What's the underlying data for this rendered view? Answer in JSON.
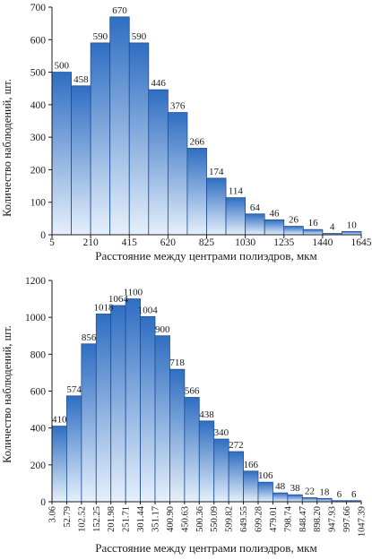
{
  "chart_data": [
    {
      "type": "bar",
      "ylabel": "Количество наблюдений, шт.",
      "xlabel": "Расстояние между центрами полиэдров, мкм",
      "ylim": [
        0,
        700
      ],
      "yticks": [
        0,
        100,
        200,
        300,
        400,
        500,
        600,
        700
      ],
      "xticks": [
        "5",
        "210",
        "415",
        "620",
        "825",
        "1030",
        "1235",
        "1440",
        "1645"
      ],
      "values": [
        500,
        458,
        590,
        670,
        590,
        446,
        376,
        266,
        174,
        114,
        64,
        46,
        26,
        16,
        4,
        10
      ],
      "value_labels": [
        "500",
        "458",
        "590",
        "670",
        "590",
        "446",
        "376",
        "266",
        "174",
        "114",
        "64",
        "46",
        "26",
        "16",
        "4",
        "10"
      ],
      "grid": false
    },
    {
      "type": "bar",
      "ylabel": "Количество наблюдений, шт.",
      "xlabel": "Расстояние между центрами полиэдров, мкм",
      "ylim": [
        0,
        1200
      ],
      "yticks": [
        0,
        200,
        400,
        600,
        800,
        1000,
        1200
      ],
      "xticks": [
        "3.06",
        "52.79",
        "102.52",
        "152.25",
        "201.98",
        "251.71",
        "301.44",
        "351.17",
        "400.90",
        "450.63",
        "500.36",
        "550.09",
        "599.82",
        "649.55",
        "699.28",
        "479.01",
        "798.74",
        "848.47",
        "898.20",
        "947.93",
        "997.66",
        "1047.39"
      ],
      "values": [
        410,
        574,
        856,
        1018,
        1064,
        1100,
        1004,
        900,
        718,
        566,
        438,
        340,
        272,
        166,
        106,
        48,
        38,
        22,
        18,
        6,
        6
      ],
      "value_labels": [
        "410",
        "574",
        "856",
        "1018",
        "1064",
        "1100",
        "1004",
        "900",
        "718",
        "566",
        "438",
        "340",
        "272",
        "166",
        "106",
        "48",
        "38",
        "22",
        "18",
        "6",
        "6"
      ],
      "grid": false
    }
  ],
  "colors": {
    "bar_top": "#2f6ec2",
    "bar_bottom": "#e6f0fb",
    "bar_stroke": "#1d4f96",
    "axis": "#1a1a1a"
  }
}
